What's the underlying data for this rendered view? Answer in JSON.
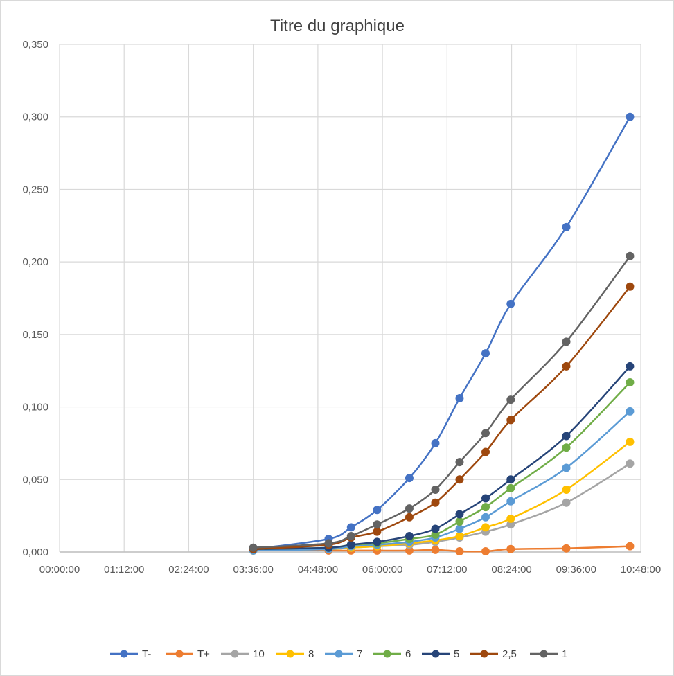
{
  "chart_data": {
    "type": "line",
    "title": "Titre du graphique",
    "xlabel": "",
    "ylabel": "",
    "xlim": [
      "00:00:00",
      "10:48:00"
    ],
    "ylim": [
      0,
      0.35
    ],
    "x_ticks": [
      "00:00:00",
      "01:12:00",
      "02:24:00",
      "03:36:00",
      "04:48:00",
      "06:00:00",
      "07:12:00",
      "08:24:00",
      "09:36:00",
      "10:48:00"
    ],
    "y_ticks": [
      "0,000",
      "0,050",
      "0,100",
      "0,150",
      "0,200",
      "0,250",
      "0,300",
      "0,350"
    ],
    "grid": true,
    "legend_position": "bottom",
    "smooth": true,
    "x": [
      "03:36:00",
      "05:00:00",
      "05:25:00",
      "05:54:00",
      "06:30:00",
      "06:59:00",
      "07:26:00",
      "07:55:00",
      "08:23:00",
      "09:25:00",
      "10:36:00"
    ],
    "series": [
      {
        "name": "T-",
        "color": "#4472C4",
        "values": [
          0.002,
          0.009,
          0.017,
          0.029,
          0.051,
          0.075,
          0.106,
          0.137,
          0.171,
          0.224,
          0.3
        ]
      },
      {
        "name": "T+",
        "color": "#ED7D31",
        "values": [
          0.002,
          0.001,
          0.001,
          0.001,
          0.001,
          0.0015,
          0.0005,
          0.0005,
          0.002,
          0.0025,
          0.004
        ]
      },
      {
        "name": "10",
        "color": "#A5A5A5",
        "values": [
          0.001,
          0.002,
          0.003,
          0.004,
          0.005,
          0.007,
          0.01,
          0.014,
          0.019,
          0.034,
          0.061
        ]
      },
      {
        "name": "8",
        "color": "#FFC000",
        "values": [
          0.001,
          0.002,
          0.003,
          0.004,
          0.006,
          0.008,
          0.011,
          0.017,
          0.023,
          0.043,
          0.076
        ]
      },
      {
        "name": "7",
        "color": "#5B9BD5",
        "values": [
          0.001,
          0.002,
          0.004,
          0.005,
          0.007,
          0.01,
          0.016,
          0.024,
          0.035,
          0.058,
          0.097
        ]
      },
      {
        "name": "6",
        "color": "#70AD47",
        "values": [
          0.002,
          0.003,
          0.005,
          0.006,
          0.009,
          0.012,
          0.021,
          0.031,
          0.044,
          0.072,
          0.117
        ]
      },
      {
        "name": "5",
        "color": "#264478",
        "values": [
          0.002,
          0.003,
          0.005,
          0.007,
          0.011,
          0.016,
          0.026,
          0.037,
          0.05,
          0.08,
          0.128
        ]
      },
      {
        "name": "2,5",
        "color": "#9E480E",
        "values": [
          0.002,
          0.005,
          0.01,
          0.014,
          0.024,
          0.034,
          0.05,
          0.069,
          0.091,
          0.128,
          0.183
        ]
      },
      {
        "name": "1",
        "color": "#636363",
        "values": [
          0.003,
          0.006,
          0.011,
          0.019,
          0.03,
          0.043,
          0.062,
          0.082,
          0.105,
          0.145,
          0.204
        ]
      }
    ]
  }
}
